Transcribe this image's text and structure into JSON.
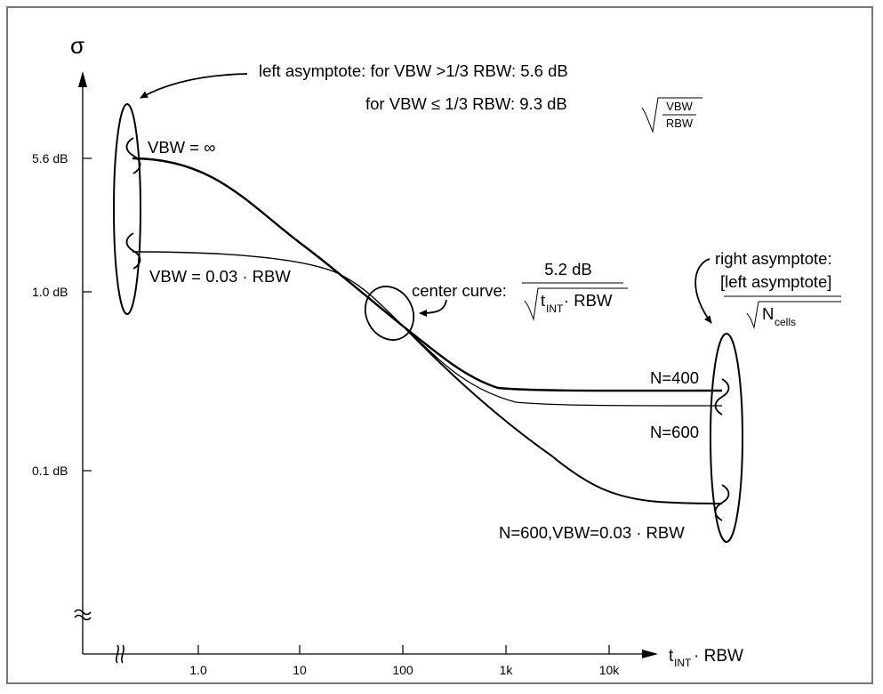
{
  "axes": {
    "y_symbol": "σ",
    "x_label_t": "t",
    "x_label_sub": "INT",
    "x_label_rest": " · RBW",
    "y_ticks": [
      "5.6 dB",
      "1.0 dB",
      "0.1 dB"
    ],
    "x_ticks": [
      "1.0",
      "10",
      "100",
      "1k",
      "10k"
    ]
  },
  "annotations": {
    "left_asymptote_line1": "left asymptote: for VBW >1/3 RBW: 5.6 dB",
    "left_asymptote_line2": "for VBW ≤ 1/3 RBW: 9.3 dB",
    "sqrt_num": "VBW",
    "sqrt_den": "RBW",
    "vbw_inf": "VBW = ∞",
    "vbw_003": "VBW = 0.03 · RBW",
    "center_curve": "center curve:",
    "center_num": "5.2 dB",
    "center_den_t": "t",
    "center_den_sub": "INT",
    "center_den_rest": " · RBW",
    "right_line1": "right asymptote:",
    "right_line2": "[left asymptote]",
    "right_den_n": "N",
    "right_den_sub": "cells",
    "n400": "N=400",
    "n600": "N=600",
    "n600_vbw": "N=600,VBW=0.03 · RBW"
  },
  "colors": {
    "ink": "#000000",
    "frame": "#777777"
  }
}
